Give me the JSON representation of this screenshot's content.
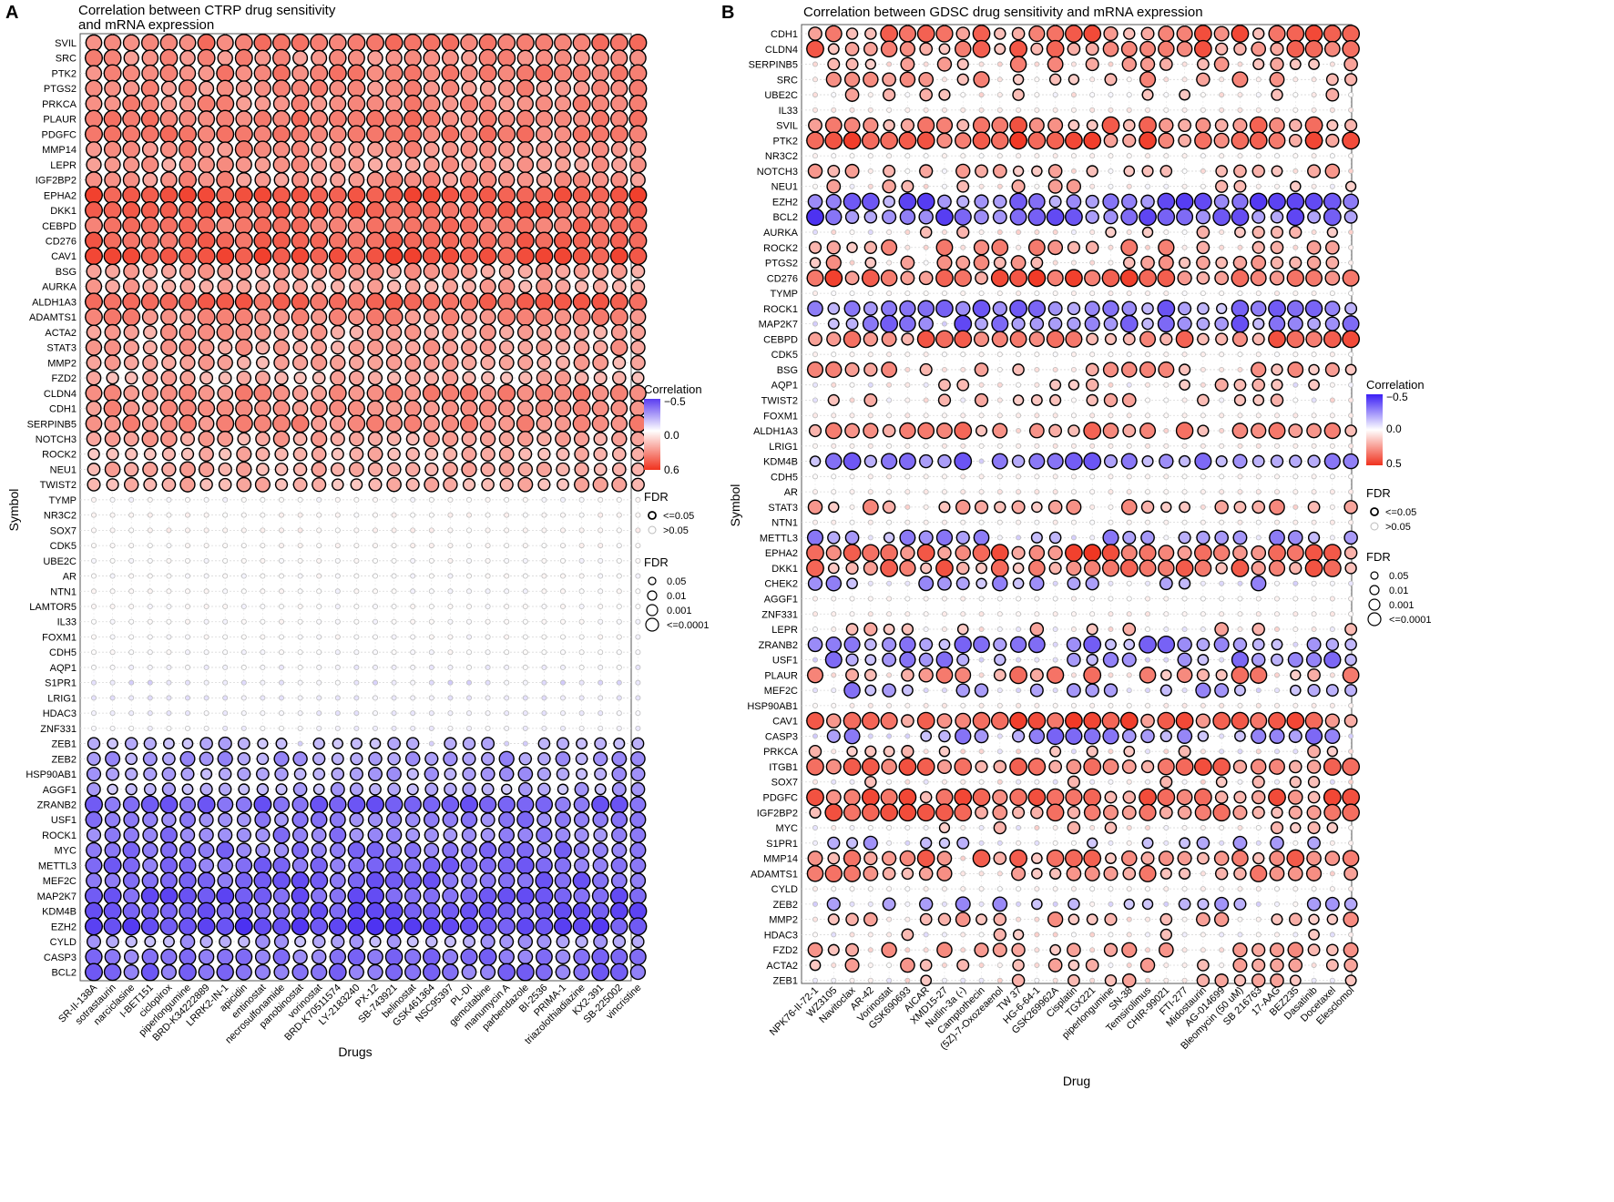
{
  "chart_data": [
    {
      "type": "bubble-heatmap",
      "panel_label": "A",
      "title_line1": "Correlation between CTRP drug sensitivity",
      "title_line2": "and mRNA expression",
      "xlabel": "Drugs",
      "ylabel": "Symbol",
      "y_categories": [
        "SVIL",
        "SRC",
        "PTK2",
        "PTGS2",
        "PRKCA",
        "PLAUR",
        "PDGFC",
        "MMP14",
        "LEPR",
        "IGF2BP2",
        "EPHA2",
        "DKK1",
        "CEBPD",
        "CD276",
        "CAV1",
        "BSG",
        "AURKA",
        "ALDH1A3",
        "ADAMTS1",
        "ACTA2",
        "STAT3",
        "MMP2",
        "FZD2",
        "CLDN4",
        "CDH1",
        "SERPINB5",
        "NOTCH3",
        "ROCK2",
        "NEU1",
        "TWIST2",
        "TYMP",
        "NR3C2",
        "SOX7",
        "CDK5",
        "UBE2C",
        "AR",
        "NTN1",
        "LAMTOR5",
        "IL33",
        "FOXM1",
        "CDH5",
        "AQP1",
        "S1PR1",
        "LRIG1",
        "HDAC3",
        "ZNF331",
        "ZEB1",
        "ZEB2",
        "HSP90AB1",
        "AGGF1",
        "ZRANB2",
        "USF1",
        "ROCK1",
        "MYC",
        "METTL3",
        "MEF2C",
        "MAP2K7",
        "KDM4B",
        "EZH2",
        "CYLD",
        "CASP3",
        "BCL2"
      ],
      "x_categories": [
        "SR-II-138A",
        "sotrastaurin",
        "narciclasine",
        "I-BET151",
        "ciclopirox",
        "piperlongumine",
        "BRD-K34222889",
        "LRRK2-IN-1",
        "apicidin",
        "entinostat",
        "necrosulfonamide",
        "panobinostat",
        "vorinostat",
        "BRD-K70511574",
        "LY-2183240",
        "PX-12",
        "SB-743921",
        "belinostat",
        "GSK461364",
        "NSC95397",
        "PL-DI",
        "gemcitabine",
        "manumycin A",
        "parbendazole",
        "BI-2536",
        "PRIMA-1",
        "triazolothiadiazine",
        "KX2-391",
        "SB-225002",
        "vincristine"
      ],
      "row_correlation_approx": [
        0.38,
        0.33,
        0.36,
        0.33,
        0.34,
        0.38,
        0.38,
        0.34,
        0.3,
        0.32,
        0.5,
        0.44,
        0.4,
        0.44,
        0.5,
        0.28,
        0.26,
        0.44,
        0.34,
        0.28,
        0.28,
        0.26,
        0.24,
        0.34,
        0.32,
        0.34,
        0.26,
        0.22,
        0.24,
        0.22,
        0.0,
        0.02,
        0.03,
        0.02,
        0.0,
        0.0,
        0.0,
        0.0,
        0.0,
        0.0,
        0.0,
        -0.03,
        -0.06,
        -0.05,
        -0.04,
        -0.03,
        -0.16,
        -0.22,
        -0.2,
        -0.18,
        -0.34,
        -0.28,
        -0.28,
        -0.3,
        -0.32,
        -0.34,
        -0.36,
        -0.36,
        -0.4,
        -0.2,
        -0.3,
        -0.32
      ],
      "legend_corr_title": "Correlation",
      "legend_corr_ticks": [
        "−0.5",
        "0.0",
        "0.6"
      ],
      "legend_corr_range": [
        -0.5,
        0.6
      ],
      "legend_fdr_border_title": "FDR",
      "legend_fdr_border_items": [
        "<=0.05",
        ">0.05"
      ],
      "legend_fdr_size_title": "FDR",
      "legend_fdr_size_items": [
        "0.05",
        "0.01",
        "0.001",
        "<=0.0001"
      ]
    },
    {
      "type": "bubble-heatmap",
      "panel_label": "B",
      "title_line1": "Correlation between GDSC drug sensitivity and mRNA expression",
      "title_line2": "",
      "xlabel": "Drug",
      "ylabel": "Symbol",
      "y_categories": [
        "CDH1",
        "CLDN4",
        "SERPINB5",
        "SRC",
        "UBE2C",
        "IL33",
        "SVIL",
        "PTK2",
        "NR3C2",
        "NOTCH3",
        "NEU1",
        "EZH2",
        "BCL2",
        "AURKA",
        "ROCK2",
        "PTGS2",
        "CD276",
        "TYMP",
        "ROCK1",
        "MAP2K7",
        "CEBPD",
        "CDK5",
        "BSG",
        "AQP1",
        "TWIST2",
        "FOXM1",
        "ALDH1A3",
        "LRIG1",
        "KDM4B",
        "CDH5",
        "AR",
        "STAT3",
        "NTN1",
        "METTL3",
        "EPHA2",
        "DKK1",
        "CHEK2",
        "AGGF1",
        "ZNF331",
        "LEPR",
        "ZRANB2",
        "USF1",
        "PLAUR",
        "MEF2C",
        "HSP90AB1",
        "CAV1",
        "CASP3",
        "PRKCA",
        "ITGB1",
        "SOX7",
        "PDGFC",
        "IGF2BP2",
        "MYC",
        "S1PR1",
        "MMP14",
        "ADAMTS1",
        "CYLD",
        "ZEB2",
        "MMP2",
        "HDAC3",
        "FZD2",
        "ACTA2",
        "ZEB1"
      ],
      "x_categories": [
        "NPK76-II-72-1",
        "WZ3105",
        "Navitoclax",
        "AR-42",
        "Vorinostat",
        "GSK690693",
        "AICAR",
        "XMD15-27",
        "Nutlin-3a (-)",
        "Camptothecin",
        "(5Z)-7-Oxozeaenol",
        "TW 37",
        "HG-6-64-1",
        "GSK269962A",
        "Cisplatin",
        "TGX221",
        "piperlongumine",
        "SN-38",
        "Temsirolimus",
        "CHIR-99021",
        "FTI-277",
        "Midostaurin",
        "AG-014699",
        "Bleomycin (50 uM)",
        "SB 216763",
        "17-AAG",
        "BEZ235",
        "Dasatinib",
        "Docetaxel",
        "Elesclomol"
      ],
      "row_correlation_approx": [
        0.3,
        0.28,
        0.22,
        0.16,
        0.08,
        0.04,
        0.28,
        0.34,
        0.02,
        0.12,
        0.1,
        -0.3,
        -0.32,
        0.06,
        0.18,
        0.14,
        0.34,
        0.02,
        -0.26,
        -0.26,
        0.3,
        0.02,
        0.16,
        0.06,
        0.08,
        0.04,
        0.24,
        0.04,
        -0.26,
        0.02,
        0.04,
        0.16,
        0.02,
        -0.16,
        0.34,
        0.28,
        -0.14,
        0.02,
        0.04,
        0.08,
        -0.24,
        -0.2,
        0.22,
        -0.18,
        0.04,
        0.34,
        -0.22,
        0.06,
        0.32,
        0.06,
        0.3,
        0.3,
        0.06,
        -0.1,
        0.26,
        0.2,
        0.02,
        -0.12,
        0.14,
        0.06,
        0.14,
        0.12,
        0.08
      ],
      "legend_corr_title": "Correlation",
      "legend_corr_ticks": [
        "−0.5",
        "0.0",
        "0.5"
      ],
      "legend_corr_range": [
        -0.5,
        0.5
      ],
      "legend_fdr_border_title": "FDR",
      "legend_fdr_border_items": [
        "<=0.05",
        ">0.05"
      ],
      "legend_fdr_size_title": "FDR",
      "legend_fdr_size_items": [
        "0.05",
        "0.01",
        "0.001",
        "<=0.0001"
      ]
    }
  ]
}
